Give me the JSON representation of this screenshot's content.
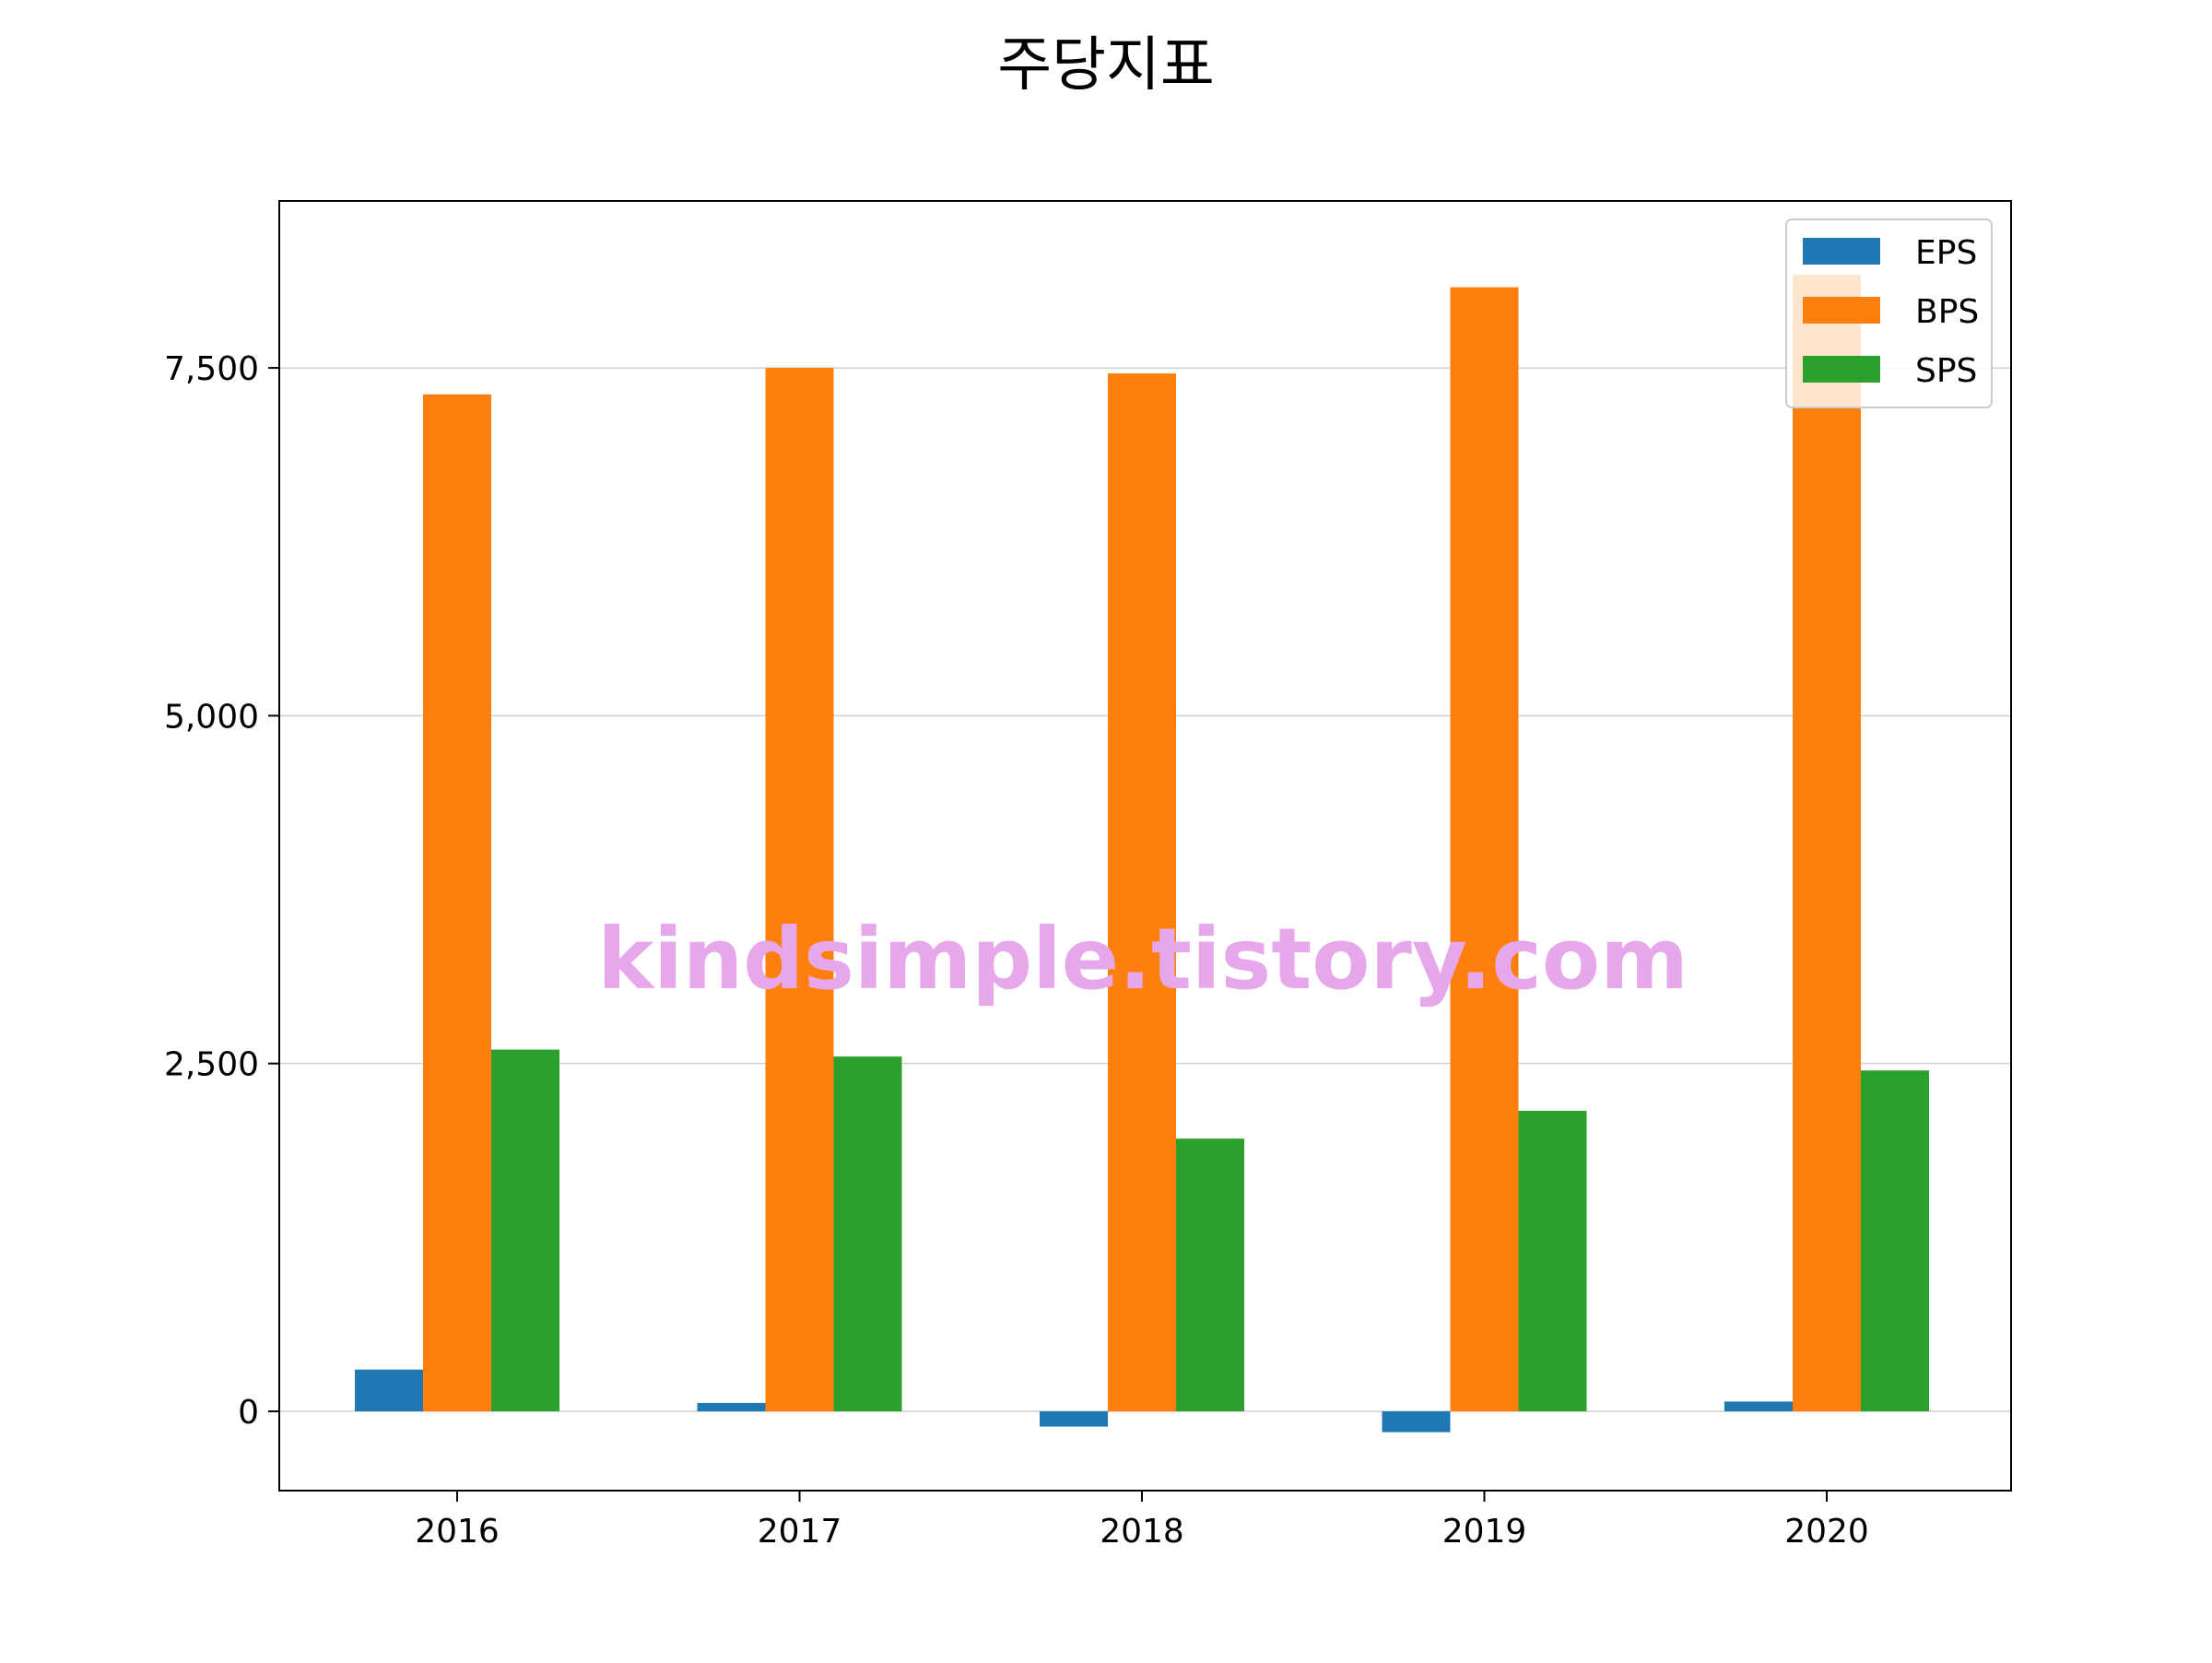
{
  "chart_data": {
    "type": "bar",
    "title": "주당지표",
    "xlabel": "",
    "ylabel": "",
    "categories": [
      "2016",
      "2017",
      "2018",
      "2019",
      "2020"
    ],
    "series": [
      {
        "name": "EPS",
        "color": "#1f77b4",
        "values": [
          300,
          60,
          -110,
          -150,
          70
        ]
      },
      {
        "name": "BPS",
        "color": "#ff7f0e",
        "values": [
          7310,
          7500,
          7460,
          8080,
          8170
        ]
      },
      {
        "name": "SPS",
        "color": "#2ca02c",
        "values": [
          2600,
          2550,
          1960,
          2160,
          2450
        ]
      }
    ],
    "ylim": [
      -570,
      8700
    ],
    "yticks": [
      0,
      2500,
      5000,
      7500
    ],
    "ytick_labels": [
      "0",
      "2,500",
      "5,000",
      "7,500"
    ],
    "grid": "horizontal",
    "legend_position": "top-right",
    "watermark": "kindsimple.tistory.com",
    "watermark_color": "#e6a8ea"
  }
}
